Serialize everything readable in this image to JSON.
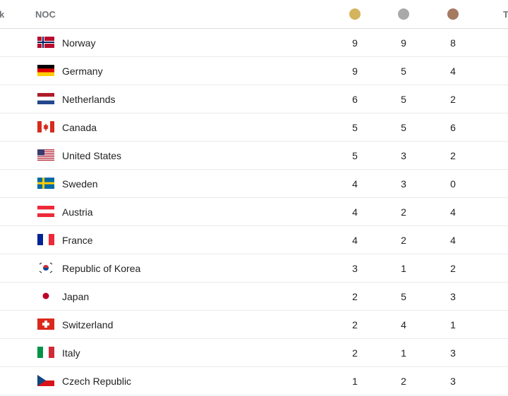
{
  "header": {
    "rank": "k",
    "noc": "NOC",
    "total": "T"
  },
  "table": {
    "rows": [
      [
        "Norway",
        9,
        9,
        8
      ],
      [
        "Germany",
        9,
        5,
        4
      ],
      [
        "Netherlands",
        6,
        5,
        2
      ],
      [
        "Canada",
        5,
        5,
        6
      ],
      [
        "United States",
        5,
        3,
        2
      ],
      [
        "Sweden",
        4,
        3,
        0
      ],
      [
        "Austria",
        4,
        2,
        4
      ],
      [
        "France",
        4,
        2,
        4
      ],
      [
        "Republic of Korea",
        3,
        1,
        2
      ],
      [
        "Japan",
        2,
        5,
        3
      ],
      [
        "Switzerland",
        2,
        4,
        1
      ],
      [
        "Italy",
        2,
        1,
        3
      ],
      [
        "Czech Republic",
        1,
        2,
        3
      ]
    ]
  }
}
